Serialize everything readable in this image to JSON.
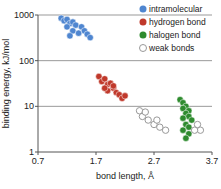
{
  "chart_data": {
    "type": "scatter",
    "x_label": "bond length, Å",
    "y_label": "binding energy, kJ/mol",
    "xlim": [
      0.7,
      3.7
    ],
    "xticks": [
      0.7,
      1.7,
      2.7,
      3.7
    ],
    "ylim": [
      1,
      1000
    ],
    "yticks": [
      1,
      10,
      100,
      1000
    ],
    "log": "y",
    "grid": true,
    "legend": "top-right",
    "marker": "circle",
    "series": [
      {
        "name": "intramolecular",
        "color": "#4f86d0",
        "x": [
          1.1,
          1.15,
          1.2,
          1.25,
          1.3,
          1.35,
          1.2,
          1.45,
          1.3,
          1.4,
          1.5,
          1.55,
          1.25,
          1.6
        ],
        "values": [
          850,
          750,
          800,
          650,
          700,
          600,
          550,
          550,
          450,
          400,
          450,
          380,
          350,
          320
        ]
      },
      {
        "name": "hydrogen bond",
        "color": "#c0392b",
        "x": [
          1.75,
          1.8,
          1.85,
          1.9,
          1.95,
          2.0,
          1.9,
          2.05,
          2.1,
          2.0,
          2.15,
          2.2,
          1.85
        ],
        "values": [
          45,
          35,
          40,
          30,
          32,
          25,
          22,
          20,
          18,
          28,
          15,
          17,
          25
        ]
      },
      {
        "name": "halogen bond",
        "color": "#2e8b2e",
        "x": [
          3.15,
          3.2,
          3.25,
          3.2,
          3.3,
          3.25,
          3.3,
          3.2,
          3.35,
          3.25,
          3.3,
          3.2,
          3.3,
          3.25
        ],
        "values": [
          14,
          12,
          10,
          9,
          8,
          7,
          6,
          5.5,
          5,
          4,
          3.5,
          3,
          2.5,
          2
        ]
      },
      {
        "name": "weak bonds",
        "color": "#ffffff",
        "x": [
          2.45,
          2.5,
          2.6,
          2.55,
          2.7,
          2.8,
          2.9,
          2.75,
          3.45,
          3.5,
          3.4
        ],
        "values": [
          8,
          6,
          5,
          7.5,
          4,
          3.5,
          3,
          5,
          4,
          3,
          3
        ]
      }
    ]
  }
}
